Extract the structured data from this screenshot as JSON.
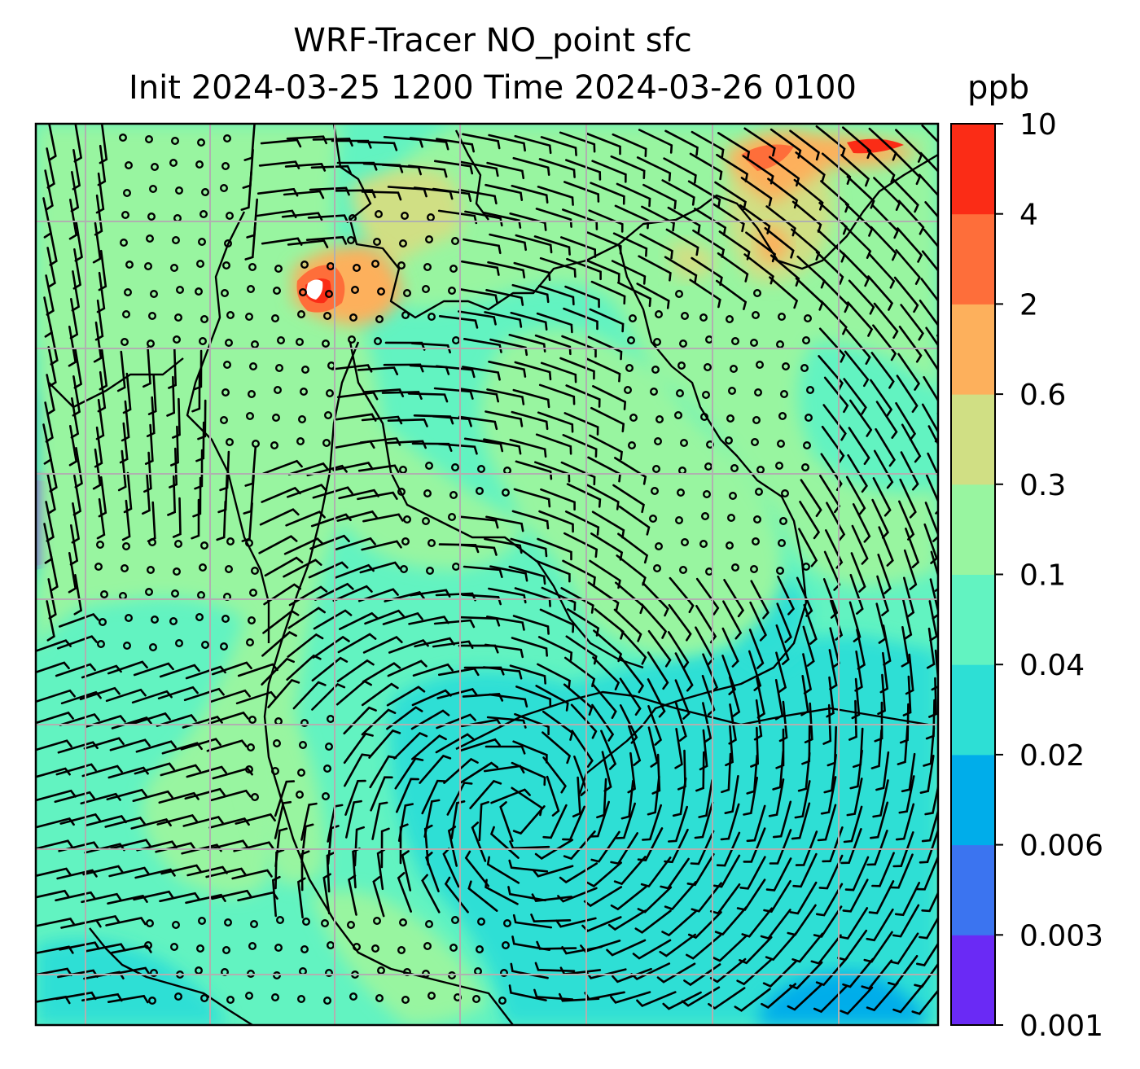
{
  "chart_data": {
    "type": "heatmap",
    "title": "WRF-Tracer NO_point sfc",
    "subtitle": "Init 2024-03-25 1200 Time 2024-03-26 0100",
    "units": "ppb",
    "colorbar": {
      "ticks": [
        "0.001",
        "0.003",
        "0.006",
        "0.02",
        "0.04",
        "0.1",
        "0.3",
        "0.6",
        "2",
        "4",
        "10"
      ],
      "colors": [
        "#6a2af5",
        "#3b74f0",
        "#00adea",
        "#2ddfd5",
        "#62f3c1",
        "#98f5a0",
        "#d0df84",
        "#fdb05c",
        "#fe6e3a",
        "#fb2c16"
      ]
    },
    "grid": true,
    "overlays": [
      "coastlines",
      "wind-barbs"
    ],
    "regions": [
      {
        "name": "ocean-south-east",
        "level": "0.02-0.04"
      },
      {
        "name": "ocean-far-southeast-patch",
        "level": "0.006-0.02"
      },
      {
        "name": "far-west-edge",
        "level": "0.001-0.006"
      },
      {
        "name": "land-central",
        "level": "0.1-0.3"
      },
      {
        "name": "plume-north-central",
        "level": "2-10"
      },
      {
        "name": "plume-north-east",
        "level": "0.6-10"
      }
    ]
  }
}
